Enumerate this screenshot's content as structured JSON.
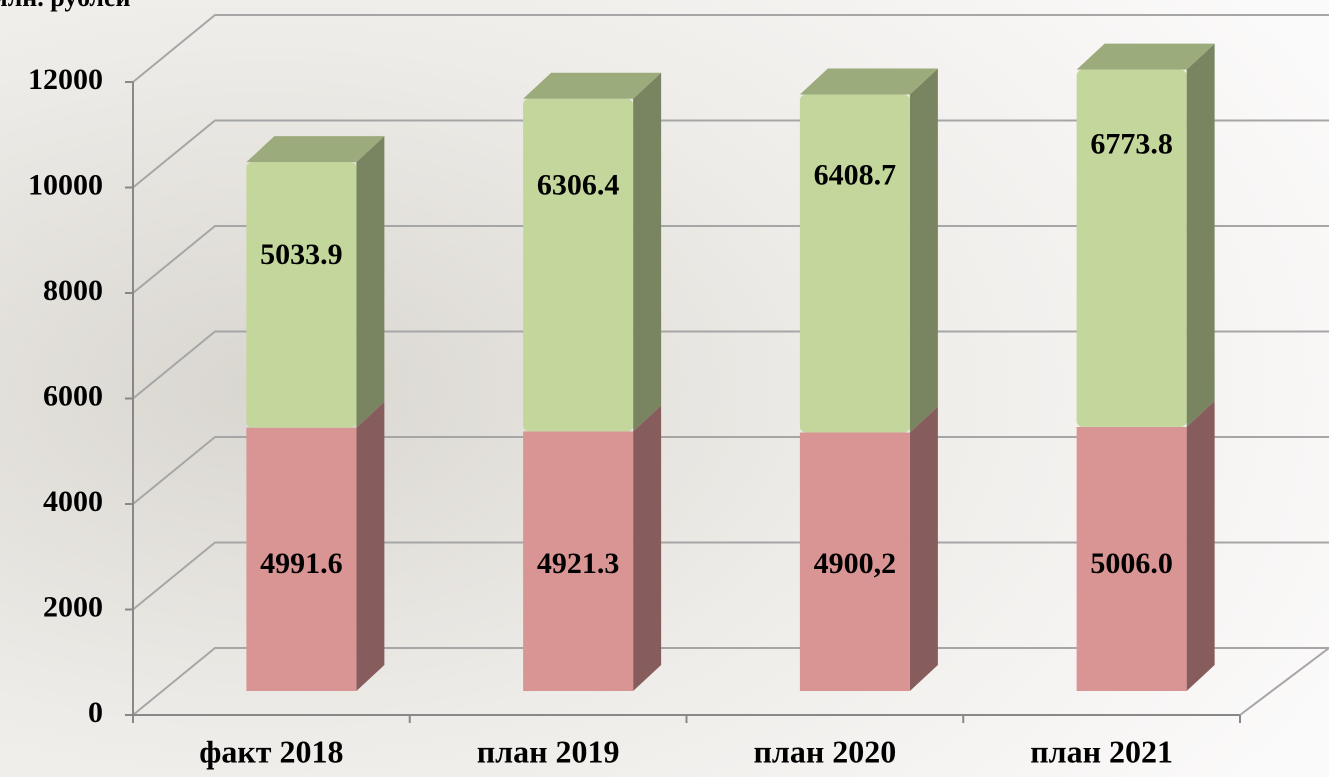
{
  "chart_data": {
    "type": "bar3d_stacked",
    "y_axis_label": "млн. рублей",
    "categories": [
      "факт 2018",
      "план 2019",
      "план 2020",
      "план 2021"
    ],
    "series": [
      {
        "color": "#d99594",
        "values": [
          4991.6,
          4921.3,
          4900.2,
          5006.0
        ],
        "value_labels": [
          "4991.6",
          "4921.3",
          "4900,2",
          "5006.0"
        ]
      },
      {
        "color": "#c3d69b",
        "values": [
          5033.9,
          6306.4,
          6408.7,
          6773.8
        ]
      }
    ],
    "ylim": [
      0,
      12000
    ],
    "yticks": [
      0,
      2000,
      4000,
      6000,
      8000,
      10000,
      12000
    ],
    "grid": true
  }
}
